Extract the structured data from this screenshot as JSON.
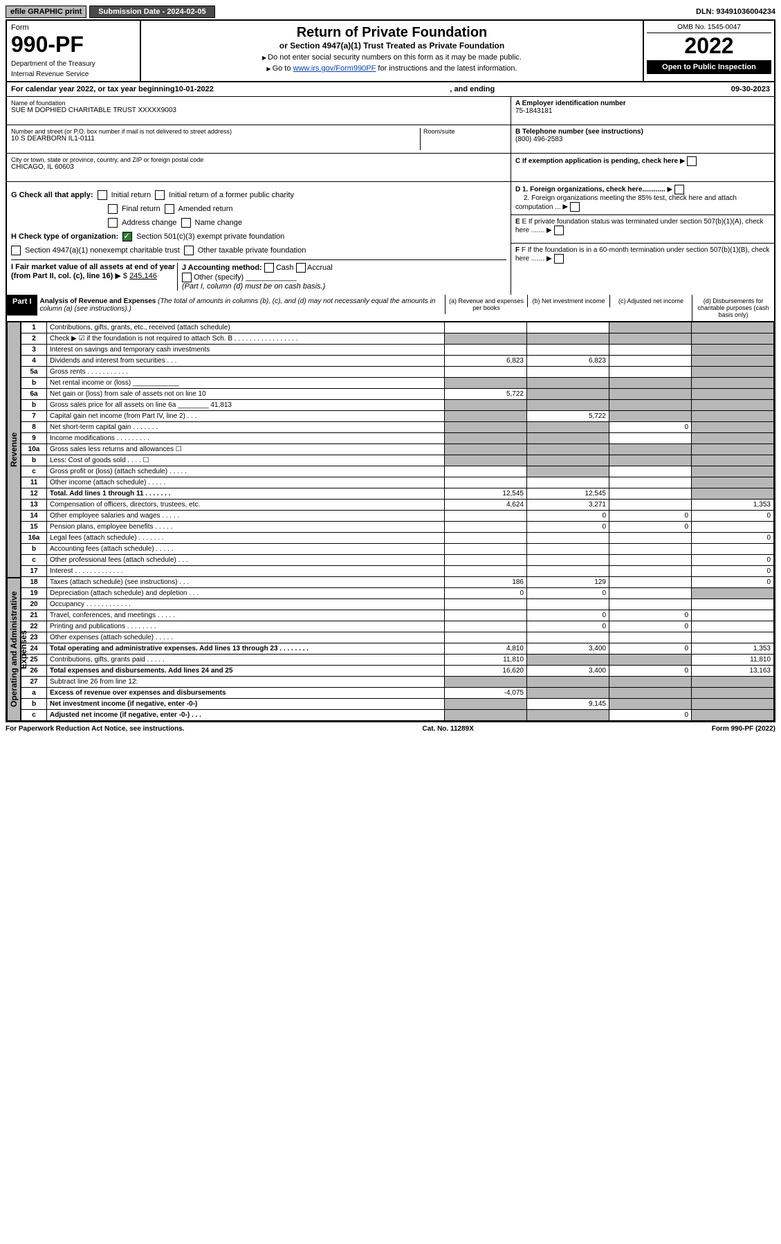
{
  "topbar": {
    "efile": "efile GRAPHIC print",
    "submission": "Submission Date - 2024-02-05",
    "dln": "DLN: 93491036004234"
  },
  "header": {
    "form_label": "Form",
    "form_number": "990-PF",
    "dept1": "Department of the Treasury",
    "dept2": "Internal Revenue Service",
    "title": "Return of Private Foundation",
    "subtitle": "or Section 4947(a)(1) Trust Treated as Private Foundation",
    "inst1": "Do not enter social security numbers on this form as it may be made public.",
    "inst2_pre": "Go to ",
    "inst2_link": "www.irs.gov/Form990PF",
    "inst2_post": " for instructions and the latest information.",
    "omb": "OMB No. 1545-0047",
    "year": "2022",
    "open": "Open to Public Inspection"
  },
  "cal": {
    "pre": "For calendar year 2022, or tax year beginning ",
    "begin": "10-01-2022",
    "mid": " , and ending ",
    "end": "09-30-2023"
  },
  "info": {
    "name_label": "Name of foundation",
    "name": "SUE M DOPHIED CHARITABLE TRUST XXXXX9003",
    "addr_label": "Number and street (or P.O. box number if mail is not delivered to street address)",
    "addr": "10 S DEARBORN IL1-0111",
    "room_label": "Room/suite",
    "city_label": "City or town, state or province, country, and ZIP or foreign postal code",
    "city": "CHICAGO, IL  60603",
    "ein_label": "A Employer identification number",
    "ein": "75-1843181",
    "phone_label": "B Telephone number (see instructions)",
    "phone": "(800) 496-2583",
    "c_label": "C If exemption application is pending, check here",
    "d1": "D 1. Foreign organizations, check here............",
    "d2": "2. Foreign organizations meeting the 85% test, check here and attach computation ...",
    "e_label": "E If private foundation status was terminated under section 507(b)(1)(A), check here .......",
    "f_label": "F If the foundation is in a 60-month termination under section 507(b)(1)(B), check here .......",
    "g_label": "G Check all that apply:",
    "g_opts": [
      "Initial return",
      "Initial return of a former public charity",
      "Final return",
      "Amended return",
      "Address change",
      "Name change"
    ],
    "h_label": "H Check type of organization:",
    "h1": "Section 501(c)(3) exempt private foundation",
    "h2": "Section 4947(a)(1) nonexempt charitable trust",
    "h3": "Other taxable private foundation",
    "i_label": "I Fair market value of all assets at end of year (from Part II, col. (c), line 16)",
    "i_val": "245,146",
    "j_label": "J Accounting method:",
    "j_cash": "Cash",
    "j_accrual": "Accrual",
    "j_other": "Other (specify)",
    "j_note": "(Part I, column (d) must be on cash basis.)"
  },
  "part1": {
    "label": "Part I",
    "title": "Analysis of Revenue and Expenses",
    "title_note": "(The total of amounts in columns (b), (c), and (d) may not necessarily equal the amounts in column (a) (see instructions).)",
    "col_a": "(a) Revenue and expenses per books",
    "col_b": "(b) Net investment income",
    "col_c": "(c) Adjusted net income",
    "col_d": "(d) Disbursements for charitable purposes (cash basis only)"
  },
  "sidelabels": {
    "revenue": "Revenue",
    "expenses": "Operating and Administrative Expenses"
  },
  "lines": [
    {
      "n": "1",
      "d": "Contributions, gifts, grants, etc., received (attach schedule)",
      "a": "",
      "b": "",
      "c": "",
      "dd": "",
      "bg": false,
      "ag": false,
      "cg": true,
      "ddg": true
    },
    {
      "n": "2",
      "d": "Check ▶ ☑ if the foundation is not required to attach Sch. B  . . . . . . . . . . . . . . . . .",
      "a": "",
      "b": "",
      "c": "",
      "dd": "",
      "bg": true,
      "ag": true,
      "cg": true,
      "ddg": true
    },
    {
      "n": "3",
      "d": "Interest on savings and temporary cash investments",
      "a": "",
      "b": "",
      "c": "",
      "dd": "",
      "bg": false,
      "ag": false,
      "cg": false,
      "ddg": true
    },
    {
      "n": "4",
      "d": "Dividends and interest from securities  . . .",
      "a": "6,823",
      "b": "6,823",
      "c": "",
      "dd": "",
      "bg": false,
      "ag": false,
      "cg": false,
      "ddg": true
    },
    {
      "n": "5a",
      "d": "Gross rents  . . . . . . . . . . .",
      "a": "",
      "b": "",
      "c": "",
      "dd": "",
      "bg": false,
      "ag": false,
      "cg": false,
      "ddg": true
    },
    {
      "n": "b",
      "d": "Net rental income or (loss)  ____________",
      "a": "",
      "b": "",
      "c": "",
      "dd": "",
      "bg": true,
      "ag": true,
      "cg": true,
      "ddg": true
    },
    {
      "n": "6a",
      "d": "Net gain or (loss) from sale of assets not on line 10",
      "a": "5,722",
      "b": "",
      "c": "",
      "dd": "",
      "bg": true,
      "ag": false,
      "cg": true,
      "ddg": true
    },
    {
      "n": "b",
      "d": "Gross sales price for all assets on line 6a ________ 41,813",
      "a": "",
      "b": "",
      "c": "",
      "dd": "",
      "bg": true,
      "ag": true,
      "cg": true,
      "ddg": true
    },
    {
      "n": "7",
      "d": "Capital gain net income (from Part IV, line 2)  . . .",
      "a": "",
      "b": "5,722",
      "c": "",
      "dd": "",
      "bg": false,
      "ag": true,
      "cg": true,
      "ddg": true
    },
    {
      "n": "8",
      "d": "Net short-term capital gain  . . . . . . .",
      "a": "",
      "b": "",
      "c": "0",
      "dd": "",
      "bg": true,
      "ag": true,
      "cg": false,
      "ddg": true
    },
    {
      "n": "9",
      "d": "Income modifications  . . . . . . . . .",
      "a": "",
      "b": "",
      "c": "",
      "dd": "",
      "bg": true,
      "ag": true,
      "cg": false,
      "ddg": true
    },
    {
      "n": "10a",
      "d": "Gross sales less returns and allowances  ☐",
      "a": "",
      "b": "",
      "c": "",
      "dd": "",
      "bg": true,
      "ag": true,
      "cg": true,
      "ddg": true
    },
    {
      "n": "b",
      "d": "Less: Cost of goods sold  . . . .  ☐",
      "a": "",
      "b": "",
      "c": "",
      "dd": "",
      "bg": true,
      "ag": true,
      "cg": true,
      "ddg": true
    },
    {
      "n": "c",
      "d": "Gross profit or (loss) (attach schedule)  . . . . .",
      "a": "",
      "b": "",
      "c": "",
      "dd": "",
      "bg": true,
      "ag": false,
      "cg": false,
      "ddg": true
    },
    {
      "n": "11",
      "d": "Other income (attach schedule)  . . . . .",
      "a": "",
      "b": "",
      "c": "",
      "dd": "",
      "bg": false,
      "ag": false,
      "cg": false,
      "ddg": true
    },
    {
      "n": "12",
      "d": "Total. Add lines 1 through 11  . . . . . . .",
      "a": "12,545",
      "b": "12,545",
      "c": "",
      "dd": "",
      "bg": false,
      "ag": false,
      "cg": false,
      "ddg": true,
      "bold": true
    },
    {
      "n": "13",
      "d": "Compensation of officers, directors, trustees, etc.",
      "a": "4,624",
      "b": "3,271",
      "c": "",
      "dd": "1,353",
      "bg": false,
      "ag": false,
      "cg": false,
      "ddg": false
    },
    {
      "n": "14",
      "d": "Other employee salaries and wages  . . . . .",
      "a": "",
      "b": "0",
      "c": "0",
      "dd": "0",
      "bg": false,
      "ag": false,
      "cg": false,
      "ddg": false
    },
    {
      "n": "15",
      "d": "Pension plans, employee benefits  . . . . .",
      "a": "",
      "b": "0",
      "c": "0",
      "dd": "",
      "bg": false,
      "ag": false,
      "cg": false,
      "ddg": false
    },
    {
      "n": "16a",
      "d": "Legal fees (attach schedule)  . . . . . . .",
      "a": "",
      "b": "",
      "c": "",
      "dd": "0",
      "bg": false,
      "ag": false,
      "cg": false,
      "ddg": false
    },
    {
      "n": "b",
      "d": "Accounting fees (attach schedule)  . . . . .",
      "a": "",
      "b": "",
      "c": "",
      "dd": "",
      "bg": false,
      "ag": false,
      "cg": false,
      "ddg": false
    },
    {
      "n": "c",
      "d": "Other professional fees (attach schedule)  . . .",
      "a": "",
      "b": "",
      "c": "",
      "dd": "0",
      "bg": false,
      "ag": false,
      "cg": false,
      "ddg": false
    },
    {
      "n": "17",
      "d": "Interest  . . . . . . . . . . . . .",
      "a": "",
      "b": "",
      "c": "",
      "dd": "0",
      "bg": false,
      "ag": false,
      "cg": false,
      "ddg": false
    },
    {
      "n": "18",
      "d": "Taxes (attach schedule) (see instructions)  . . .",
      "a": "186",
      "b": "129",
      "c": "",
      "dd": "0",
      "bg": false,
      "ag": false,
      "cg": false,
      "ddg": false
    },
    {
      "n": "19",
      "d": "Depreciation (attach schedule) and depletion  . . .",
      "a": "0",
      "b": "0",
      "c": "",
      "dd": "",
      "bg": false,
      "ag": false,
      "cg": false,
      "ddg": true
    },
    {
      "n": "20",
      "d": "Occupancy  . . . . . . . . . . . .",
      "a": "",
      "b": "",
      "c": "",
      "dd": "",
      "bg": false,
      "ag": false,
      "cg": false,
      "ddg": false
    },
    {
      "n": "21",
      "d": "Travel, conferences, and meetings  . . . . .",
      "a": "",
      "b": "0",
      "c": "0",
      "dd": "",
      "bg": false,
      "ag": false,
      "cg": false,
      "ddg": false
    },
    {
      "n": "22",
      "d": "Printing and publications  . . . . . . . .",
      "a": "",
      "b": "0",
      "c": "0",
      "dd": "",
      "bg": false,
      "ag": false,
      "cg": false,
      "ddg": false
    },
    {
      "n": "23",
      "d": "Other expenses (attach schedule)  . . . . .",
      "a": "",
      "b": "",
      "c": "",
      "dd": "",
      "bg": false,
      "ag": false,
      "cg": false,
      "ddg": false
    },
    {
      "n": "24",
      "d": "Total operating and administrative expenses. Add lines 13 through 23  . . . . . . . .",
      "a": "4,810",
      "b": "3,400",
      "c": "0",
      "dd": "1,353",
      "bg": false,
      "ag": false,
      "cg": false,
      "ddg": false,
      "bold": true
    },
    {
      "n": "25",
      "d": "Contributions, gifts, grants paid  . . . . .",
      "a": "11,810",
      "b": "",
      "c": "",
      "dd": "11,810",
      "bg": true,
      "ag": false,
      "cg": true,
      "ddg": false
    },
    {
      "n": "26",
      "d": "Total expenses and disbursements. Add lines 24 and 25",
      "a": "16,620",
      "b": "3,400",
      "c": "0",
      "dd": "13,163",
      "bg": false,
      "ag": false,
      "cg": false,
      "ddg": false,
      "bold": true
    },
    {
      "n": "27",
      "d": "Subtract line 26 from line 12:",
      "a": "",
      "b": "",
      "c": "",
      "dd": "",
      "bg": true,
      "ag": true,
      "cg": true,
      "ddg": true
    },
    {
      "n": "a",
      "d": "Excess of revenue over expenses and disbursements",
      "a": "-4,075",
      "b": "",
      "c": "",
      "dd": "",
      "bg": true,
      "ag": false,
      "cg": true,
      "ddg": true,
      "bold": true
    },
    {
      "n": "b",
      "d": "Net investment income (if negative, enter -0-)",
      "a": "",
      "b": "9,145",
      "c": "",
      "dd": "",
      "bg": false,
      "ag": true,
      "cg": true,
      "ddg": true,
      "bold": true
    },
    {
      "n": "c",
      "d": "Adjusted net income (if negative, enter -0-)  . . .",
      "a": "",
      "b": "",
      "c": "0",
      "dd": "",
      "bg": true,
      "ag": true,
      "cg": false,
      "ddg": true,
      "bold": true
    }
  ],
  "footer": {
    "left": "For Paperwork Reduction Act Notice, see instructions.",
    "mid": "Cat. No. 11289X",
    "right": "Form 990-PF (2022)"
  }
}
